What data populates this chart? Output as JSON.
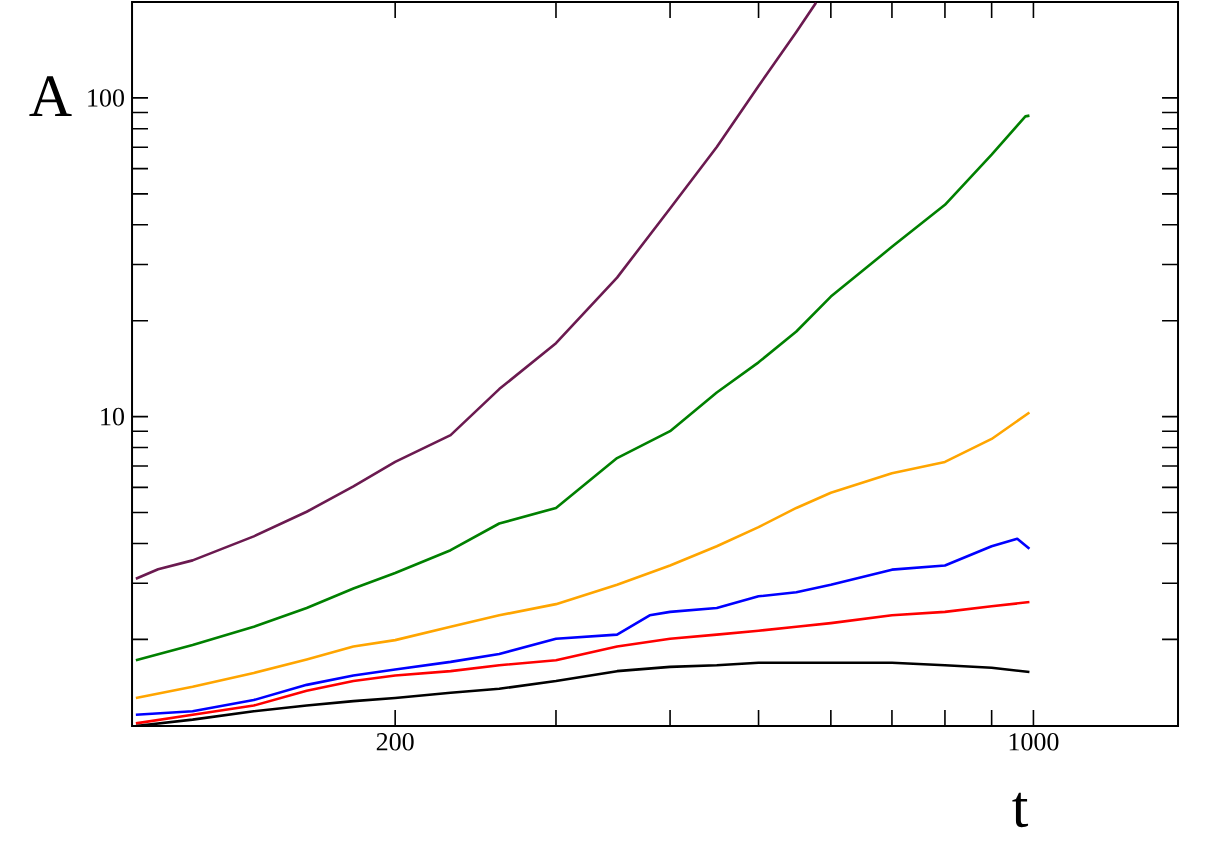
{
  "chart_data": {
    "type": "line",
    "xlabel": "t",
    "ylabel": "A",
    "log": "xy",
    "marker": "none",
    "line_style": "solid",
    "xlim": [
      103,
      1440
    ],
    "ylim": [
      1.07,
      200
    ],
    "xticks": [
      200,
      {
        "value": 300,
        "label": null
      },
      {
        "value": 400,
        "label": null
      },
      {
        "value": 500,
        "label": null
      },
      {
        "value": 600,
        "label": null
      },
      {
        "value": 700,
        "label": null
      },
      {
        "value": 800,
        "label": null
      },
      {
        "value": 900,
        "label": null
      },
      1000
    ],
    "yticks": [
      {
        "value": 2,
        "label": null
      },
      {
        "value": 3,
        "label": null
      },
      {
        "value": 4,
        "label": null
      },
      {
        "value": 5,
        "label": null
      },
      {
        "value": 6,
        "label": null
      },
      {
        "value": 7,
        "label": null
      },
      {
        "value": 8,
        "label": null
      },
      {
        "value": 9,
        "label": null
      },
      10,
      {
        "value": 20,
        "label": null
      },
      {
        "value": 30,
        "label": null
      },
      {
        "value": 40,
        "label": null
      },
      {
        "value": 50,
        "label": null
      },
      {
        "value": 60,
        "label": null
      },
      {
        "value": 70,
        "label": null
      },
      {
        "value": 80,
        "label": null
      },
      {
        "value": 90,
        "label": null
      },
      100
    ],
    "series": [
      {
        "color": "#6b1a50",
        "x": [
          104,
          110,
          120,
          140,
          160,
          180,
          200,
          230,
          260,
          300,
          350,
          400,
          450,
          500,
          550,
          578
        ],
        "values": [
          3.1,
          3.32,
          3.54,
          4.21,
          5.03,
          6.04,
          7.21,
          8.75,
          12.2,
          17.0,
          27.3,
          45.0,
          70.1,
          109,
          161,
          199
        ]
      },
      {
        "color": "#008000",
        "x": [
          104,
          120,
          140,
          160,
          180,
          200,
          230,
          260,
          300,
          350,
          400,
          450,
          500,
          550,
          600,
          700,
          800,
          900,
          980,
          990
        ],
        "values": [
          1.72,
          1.92,
          2.19,
          2.51,
          2.89,
          3.23,
          3.81,
          4.62,
          5.17,
          7.41,
          9.0,
          11.9,
          14.8,
          18.5,
          23.8,
          34.1,
          46.2,
          66.4,
          87.5,
          88
        ]
      },
      {
        "color": "#ffa500",
        "x": [
          104,
          120,
          140,
          160,
          180,
          200,
          230,
          260,
          300,
          350,
          400,
          450,
          500,
          550,
          600,
          700,
          800,
          900,
          990
        ],
        "values": [
          1.31,
          1.42,
          1.57,
          1.73,
          1.9,
          1.99,
          2.19,
          2.38,
          2.58,
          2.97,
          3.41,
          3.92,
          4.5,
          5.17,
          5.77,
          6.64,
          7.21,
          8.51,
          10.3
        ]
      },
      {
        "color": "#0000ff",
        "x": [
          104,
          120,
          140,
          160,
          180,
          200,
          230,
          260,
          300,
          350,
          380,
          400,
          450,
          500,
          550,
          600,
          700,
          800,
          900,
          960,
          990
        ],
        "values": [
          1.16,
          1.19,
          1.29,
          1.44,
          1.54,
          1.61,
          1.7,
          1.8,
          2.01,
          2.07,
          2.38,
          2.44,
          2.51,
          2.73,
          2.81,
          2.97,
          3.31,
          3.41,
          3.92,
          4.14,
          3.85
        ]
      },
      {
        "color": "#ff0000",
        "x": [
          104,
          120,
          140,
          160,
          180,
          200,
          230,
          260,
          300,
          350,
          400,
          450,
          500,
          550,
          600,
          700,
          800,
          900,
          990
        ],
        "values": [
          1.09,
          1.16,
          1.24,
          1.38,
          1.48,
          1.54,
          1.59,
          1.66,
          1.72,
          1.9,
          2.01,
          2.07,
          2.13,
          2.19,
          2.25,
          2.38,
          2.44,
          2.54,
          2.62
        ]
      },
      {
        "color": "#000000",
        "x": [
          104,
          120,
          140,
          160,
          180,
          200,
          230,
          260,
          300,
          350,
          400,
          450,
          500,
          550,
          600,
          700,
          800,
          900,
          990
        ],
        "values": [
          1.07,
          1.12,
          1.19,
          1.24,
          1.28,
          1.31,
          1.36,
          1.4,
          1.48,
          1.59,
          1.64,
          1.66,
          1.69,
          1.69,
          1.69,
          1.69,
          1.66,
          1.63,
          1.58
        ]
      }
    ]
  }
}
